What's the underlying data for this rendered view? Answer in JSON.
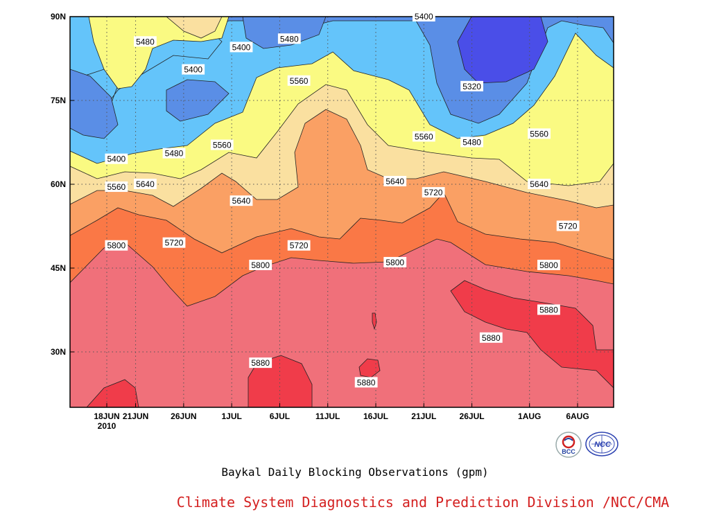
{
  "chart_data": {
    "type": "heatmap",
    "title": "Baykal Daily Blocking Observations (gpm)",
    "credit": "Climate System Diagnostics and Prediction Division /NCC/CMA",
    "x_ticks": [
      {
        "label": "18JUN",
        "date": "2010-06-18"
      },
      {
        "label": "21JUN",
        "date": "2010-06-21"
      },
      {
        "label": "26JUN",
        "date": "2010-06-26"
      },
      {
        "label": "1JUL",
        "date": "2010-07-01"
      },
      {
        "label": "6JUL",
        "date": "2010-07-06"
      },
      {
        "label": "11JUL",
        "date": "2010-07-11"
      },
      {
        "label": "16JUL",
        "date": "2010-07-16"
      },
      {
        "label": "21JUL",
        "date": "2010-07-21"
      },
      {
        "label": "26JUL",
        "date": "2010-07-26"
      },
      {
        "label": "1AUG",
        "date": "2010-08-01"
      },
      {
        "label": "6AUG",
        "date": "2010-08-06"
      }
    ],
    "year_label": "2010",
    "y_ticks": [
      "90N",
      "75N",
      "60N",
      "45N",
      "30N"
    ],
    "y_values": [
      90,
      75,
      60,
      45,
      30
    ],
    "contour_levels": [
      5320,
      5400,
      5480,
      5560,
      5640,
      5720,
      5800,
      5880
    ],
    "level_colors": {
      "5320": "#4a4ee8",
      "5400": "#5a8ee6",
      "5480": "#64c4fa",
      "5560": "#fafa82",
      "5640": "#fae0a0",
      "5720": "#faa064",
      "5800": "#fa7846",
      "5880": "#f0707a",
      "max": "#f03c4a"
    },
    "contour_labels": [
      {
        "text": "5400",
        "date": "2010-06-19",
        "lat": 64.5
      },
      {
        "text": "5560",
        "date": "2010-06-19",
        "lat": 59.5
      },
      {
        "text": "5480",
        "date": "2010-06-22",
        "lat": 85.5
      },
      {
        "text": "5640",
        "date": "2010-06-22",
        "lat": 60
      },
      {
        "text": "5800",
        "date": "2010-06-19",
        "lat": 49
      },
      {
        "text": "5400",
        "date": "2010-06-27",
        "lat": 80.5
      },
      {
        "text": "5480",
        "date": "2010-06-25",
        "lat": 65.5
      },
      {
        "text": "5720",
        "date": "2010-06-25",
        "lat": 49.5
      },
      {
        "text": "5400",
        "date": "2010-07-02",
        "lat": 84.5
      },
      {
        "text": "5560",
        "date": "2010-06-30",
        "lat": 67
      },
      {
        "text": "5640",
        "date": "2010-07-02",
        "lat": 57
      },
      {
        "text": "5800",
        "date": "2010-07-04",
        "lat": 45.5
      },
      {
        "text": "5480",
        "date": "2010-07-07",
        "lat": 86
      },
      {
        "text": "5560",
        "date": "2010-07-08",
        "lat": 78.5
      },
      {
        "text": "5720",
        "date": "2010-07-08",
        "lat": 49
      },
      {
        "text": "5880",
        "date": "2010-07-04",
        "lat": 28
      },
      {
        "text": "5400",
        "date": "2010-07-21",
        "lat": 90
      },
      {
        "text": "5880",
        "date": "2010-07-15",
        "lat": 24.5
      },
      {
        "text": "5640",
        "date": "2010-07-18",
        "lat": 60.5
      },
      {
        "text": "5800",
        "date": "2010-07-18",
        "lat": 46
      },
      {
        "text": "5560",
        "date": "2010-07-21",
        "lat": 68.5
      },
      {
        "text": "5720",
        "date": "2010-07-22",
        "lat": 58.5
      },
      {
        "text": "5320",
        "date": "2010-07-26",
        "lat": 77.5
      },
      {
        "text": "5480",
        "date": "2010-07-26",
        "lat": 67.5
      },
      {
        "text": "5880",
        "date": "2010-07-28",
        "lat": 32.5
      },
      {
        "text": "5560",
        "date": "2010-08-02",
        "lat": 69
      },
      {
        "text": "5640",
        "date": "2010-08-02",
        "lat": 60
      },
      {
        "text": "5720",
        "date": "2010-08-05",
        "lat": 52.5
      },
      {
        "text": "5800",
        "date": "2010-08-03",
        "lat": 45.5
      },
      {
        "text": "5880",
        "date": "2010-08-03",
        "lat": 37.5
      }
    ]
  },
  "logos": {
    "left": {
      "name": "bcc-logo",
      "text": "BCC"
    },
    "right": {
      "name": "ncc-logo",
      "text": "NCC"
    }
  }
}
